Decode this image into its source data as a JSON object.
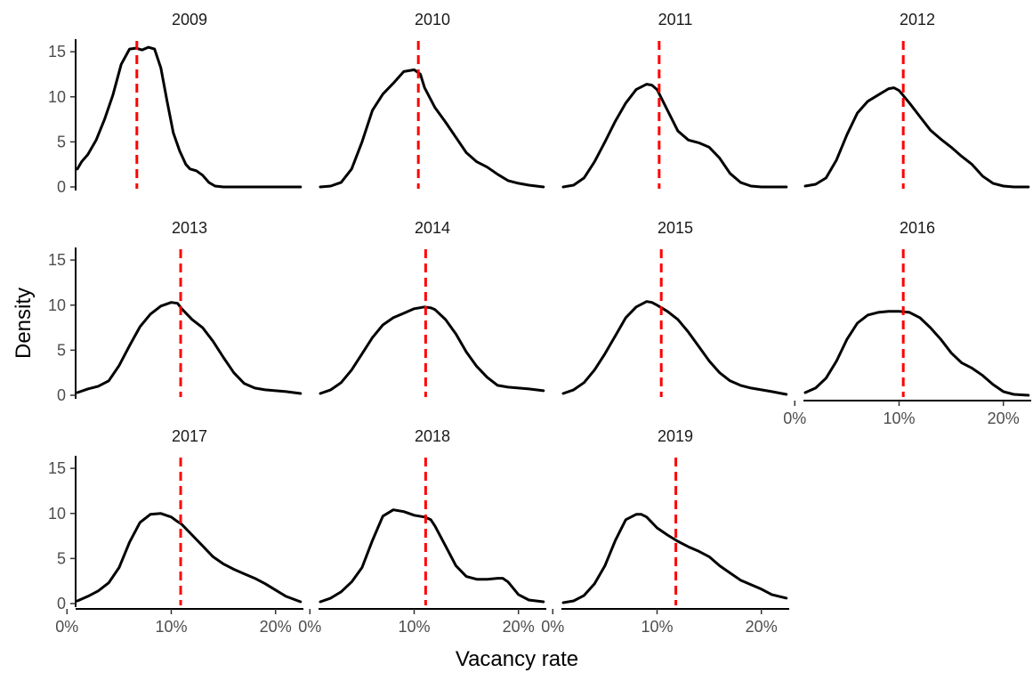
{
  "chart_data": {
    "type": "line",
    "subtype": "faceted-density",
    "title": "",
    "xlabel": "Vacancy rate",
    "ylabel": "Density",
    "xlim": [
      0.01,
      0.225
    ],
    "ylim": [
      0,
      16
    ],
    "x_ticks": [
      0,
      0.1,
      0.2
    ],
    "x_tick_labels": [
      "0%",
      "10%",
      "20%"
    ],
    "y_ticks": [
      0,
      5,
      10,
      15
    ],
    "y_tick_labels": [
      "0",
      "5",
      "10",
      "15"
    ],
    "grid": false,
    "line_color": "#000000",
    "reference_line_color": "#FF0000",
    "reference_line_style": "dashed",
    "facets": [
      {
        "label": "2009",
        "mean": 0.067,
        "x": [
          0.01,
          0.014,
          0.02,
          0.028,
          0.036,
          0.044,
          0.052,
          0.06,
          0.066,
          0.072,
          0.078,
          0.084,
          0.09,
          0.096,
          0.102,
          0.108,
          0.114,
          0.118,
          0.124,
          0.13,
          0.136,
          0.142,
          0.15,
          0.16,
          0.18,
          0.2,
          0.224
        ],
        "y": [
          2.0,
          2.8,
          3.6,
          5.2,
          7.5,
          10.2,
          13.6,
          15.3,
          15.4,
          15.2,
          15.5,
          15.3,
          13.2,
          9.5,
          6.0,
          4.0,
          2.5,
          2.0,
          1.8,
          1.3,
          0.5,
          0.1,
          0,
          0,
          0,
          0,
          0
        ]
      },
      {
        "label": "2010",
        "mean": 0.104,
        "x": [
          0.01,
          0.02,
          0.03,
          0.04,
          0.05,
          0.06,
          0.07,
          0.08,
          0.09,
          0.1,
          0.106,
          0.11,
          0.12,
          0.13,
          0.14,
          0.15,
          0.16,
          0.17,
          0.18,
          0.19,
          0.2,
          0.21,
          0.224
        ],
        "y": [
          0,
          0.1,
          0.5,
          2.0,
          5.0,
          8.5,
          10.3,
          11.5,
          12.8,
          13.0,
          12.5,
          11.0,
          8.8,
          7.2,
          5.5,
          3.8,
          2.8,
          2.2,
          1.4,
          0.7,
          0.4,
          0.2,
          0
        ]
      },
      {
        "label": "2011",
        "mean": 0.102,
        "x": [
          0.01,
          0.02,
          0.03,
          0.04,
          0.05,
          0.06,
          0.07,
          0.08,
          0.09,
          0.095,
          0.1,
          0.11,
          0.12,
          0.13,
          0.14,
          0.15,
          0.16,
          0.17,
          0.18,
          0.19,
          0.2,
          0.21,
          0.224
        ],
        "y": [
          0,
          0.2,
          1.0,
          2.8,
          5.0,
          7.3,
          9.3,
          10.8,
          11.4,
          11.3,
          10.8,
          8.5,
          6.2,
          5.2,
          4.9,
          4.4,
          3.2,
          1.5,
          0.5,
          0.1,
          0,
          0,
          0
        ]
      },
      {
        "label": "2012",
        "mean": 0.104,
        "x": [
          0.01,
          0.02,
          0.03,
          0.04,
          0.05,
          0.06,
          0.07,
          0.08,
          0.09,
          0.095,
          0.1,
          0.11,
          0.12,
          0.13,
          0.14,
          0.15,
          0.16,
          0.17,
          0.18,
          0.19,
          0.2,
          0.21,
          0.224
        ],
        "y": [
          0.1,
          0.3,
          1.0,
          3.0,
          5.8,
          8.2,
          9.5,
          10.2,
          10.9,
          11.0,
          10.7,
          9.3,
          7.8,
          6.3,
          5.3,
          4.4,
          3.4,
          2.5,
          1.2,
          0.4,
          0.1,
          0,
          0
        ]
      },
      {
        "label": "2013",
        "mean": 0.109,
        "x": [
          0.01,
          0.02,
          0.03,
          0.04,
          0.05,
          0.06,
          0.07,
          0.08,
          0.09,
          0.1,
          0.106,
          0.11,
          0.12,
          0.13,
          0.14,
          0.15,
          0.16,
          0.17,
          0.18,
          0.19,
          0.2,
          0.21,
          0.224
        ],
        "y": [
          0.3,
          0.7,
          1.0,
          1.6,
          3.3,
          5.5,
          7.6,
          9.0,
          9.9,
          10.3,
          10.2,
          9.6,
          8.4,
          7.5,
          6.0,
          4.2,
          2.5,
          1.3,
          0.8,
          0.6,
          0.5,
          0.4,
          0.2
        ]
      },
      {
        "label": "2014",
        "mean": 0.111,
        "x": [
          0.01,
          0.02,
          0.03,
          0.04,
          0.05,
          0.06,
          0.07,
          0.08,
          0.09,
          0.1,
          0.11,
          0.116,
          0.12,
          0.13,
          0.14,
          0.15,
          0.16,
          0.17,
          0.18,
          0.19,
          0.2,
          0.21,
          0.224
        ],
        "y": [
          0.2,
          0.6,
          1.4,
          2.8,
          4.6,
          6.4,
          7.8,
          8.6,
          9.1,
          9.6,
          9.8,
          9.7,
          9.5,
          8.4,
          6.8,
          4.8,
          3.2,
          2.0,
          1.1,
          0.9,
          0.8,
          0.7,
          0.5
        ]
      },
      {
        "label": "2015",
        "mean": 0.104,
        "x": [
          0.01,
          0.02,
          0.03,
          0.04,
          0.05,
          0.06,
          0.07,
          0.08,
          0.09,
          0.095,
          0.1,
          0.11,
          0.12,
          0.13,
          0.14,
          0.15,
          0.16,
          0.17,
          0.18,
          0.19,
          0.2,
          0.21,
          0.224
        ],
        "y": [
          0.2,
          0.6,
          1.4,
          2.8,
          4.6,
          6.6,
          8.6,
          9.8,
          10.4,
          10.3,
          10.0,
          9.3,
          8.4,
          7.0,
          5.4,
          3.8,
          2.5,
          1.6,
          1.1,
          0.8,
          0.6,
          0.4,
          0.1
        ]
      },
      {
        "label": "2016",
        "mean": 0.104,
        "x": [
          0.01,
          0.02,
          0.03,
          0.04,
          0.05,
          0.06,
          0.07,
          0.08,
          0.09,
          0.1,
          0.11,
          0.12,
          0.13,
          0.14,
          0.15,
          0.16,
          0.17,
          0.18,
          0.19,
          0.2,
          0.21,
          0.224
        ],
        "y": [
          0.3,
          0.8,
          1.9,
          3.8,
          6.2,
          8.0,
          8.9,
          9.2,
          9.3,
          9.3,
          9.2,
          8.6,
          7.5,
          6.2,
          4.7,
          3.6,
          3.0,
          2.2,
          1.2,
          0.4,
          0.1,
          0
        ]
      },
      {
        "label": "2017",
        "mean": 0.109,
        "x": [
          0.01,
          0.02,
          0.03,
          0.04,
          0.05,
          0.06,
          0.07,
          0.08,
          0.09,
          0.1,
          0.106,
          0.11,
          0.12,
          0.13,
          0.14,
          0.15,
          0.16,
          0.17,
          0.18,
          0.19,
          0.2,
          0.21,
          0.224
        ],
        "y": [
          0.3,
          0.8,
          1.4,
          2.3,
          4.0,
          6.8,
          9.0,
          9.9,
          10.0,
          9.6,
          9.1,
          8.8,
          7.6,
          6.4,
          5.2,
          4.4,
          3.8,
          3.3,
          2.8,
          2.2,
          1.5,
          0.8,
          0.2
        ]
      },
      {
        "label": "2018",
        "mean": 0.111,
        "x": [
          0.01,
          0.02,
          0.03,
          0.04,
          0.05,
          0.06,
          0.07,
          0.08,
          0.09,
          0.1,
          0.11,
          0.116,
          0.12,
          0.13,
          0.14,
          0.15,
          0.16,
          0.17,
          0.18,
          0.185,
          0.19,
          0.2,
          0.21,
          0.224
        ],
        "y": [
          0.2,
          0.6,
          1.3,
          2.4,
          4.0,
          7.0,
          9.7,
          10.4,
          10.2,
          9.8,
          9.6,
          9.3,
          8.6,
          6.4,
          4.2,
          3.0,
          2.7,
          2.7,
          2.8,
          2.8,
          2.4,
          1.0,
          0.4,
          0.2
        ]
      },
      {
        "label": "2019",
        "mean": 0.118,
        "x": [
          0.01,
          0.02,
          0.03,
          0.04,
          0.05,
          0.06,
          0.07,
          0.08,
          0.085,
          0.09,
          0.1,
          0.11,
          0.12,
          0.13,
          0.14,
          0.15,
          0.16,
          0.17,
          0.18,
          0.19,
          0.2,
          0.21,
          0.224
        ],
        "y": [
          0.1,
          0.3,
          0.9,
          2.2,
          4.2,
          7.0,
          9.3,
          9.9,
          9.9,
          9.6,
          8.4,
          7.6,
          6.9,
          6.3,
          5.8,
          5.2,
          4.2,
          3.4,
          2.6,
          2.1,
          1.6,
          1.0,
          0.6
        ]
      }
    ]
  }
}
